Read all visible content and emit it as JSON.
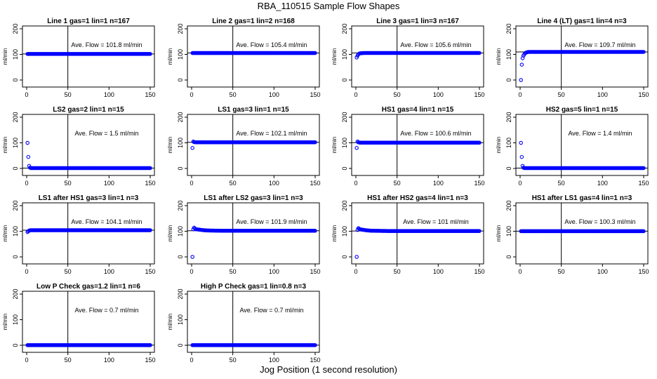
{
  "figure": {
    "title": "RBA_110515  Sample Flow Shapes",
    "xlabel": "Jog Position (1 second resolution)"
  },
  "chart_data": [
    {
      "type": "scatter",
      "title": "Line 1 gas=1 lin=1 n=167",
      "ylabel": "ml/min",
      "annotation": "Ave. Flow = 101.8  ml/min",
      "xlim": [
        0,
        150
      ],
      "ylim": [
        0,
        200
      ],
      "xticks": [
        0,
        50,
        100,
        150
      ],
      "yticks": [
        0,
        100,
        200
      ],
      "vline": 50,
      "hline": 101.8,
      "series": [
        {
          "color": "#0000ff",
          "x": [
            1,
            2,
            3,
            5,
            10,
            20,
            40,
            60,
            80,
            100,
            120,
            140,
            150
          ],
          "y": [
            101.8,
            101.8,
            101.8,
            101.8,
            101.8,
            101.8,
            101.8,
            101.8,
            101.8,
            101.8,
            101.8,
            101.8,
            101.8
          ]
        }
      ]
    },
    {
      "type": "scatter",
      "title": "Line 2 gas=1 lin=2 n=168",
      "ylabel": "ml/min",
      "annotation": "Ave. Flow = 105.4  ml/min",
      "xlim": [
        0,
        150
      ],
      "ylim": [
        0,
        200
      ],
      "xticks": [
        0,
        50,
        100,
        150
      ],
      "yticks": [
        0,
        100,
        200
      ],
      "vline": 50,
      "hline": 105.4,
      "series": [
        {
          "color": "#0000ff",
          "x": [
            1,
            2,
            3,
            5,
            10,
            20,
            40,
            60,
            80,
            100,
            120,
            140,
            150
          ],
          "y": [
            105.4,
            105.4,
            105.4,
            105.4,
            105.4,
            105.4,
            105.4,
            105.4,
            105.4,
            105.4,
            105.4,
            105.4,
            105.4
          ]
        }
      ]
    },
    {
      "type": "scatter",
      "title": "Line 3 gas=1 lin=3 n=167",
      "ylabel": "ml/min",
      "annotation": "Ave. Flow = 105.6  ml/min",
      "xlim": [
        0,
        150
      ],
      "ylim": [
        0,
        200
      ],
      "xticks": [
        0,
        50,
        100,
        150
      ],
      "yticks": [
        0,
        100,
        200
      ],
      "vline": 50,
      "hline": 105.6,
      "series": [
        {
          "color": "#0000ff",
          "x": [
            1,
            2,
            3,
            4,
            5,
            8,
            10,
            20,
            40,
            60,
            80,
            100,
            120,
            140,
            150
          ],
          "y": [
            88,
            95,
            100,
            103,
            104,
            105,
            105.6,
            105.6,
            105.6,
            105.6,
            105.6,
            105.6,
            105.6,
            105.6,
            105.6
          ]
        }
      ]
    },
    {
      "type": "scatter",
      "title": "Line 4 (LT) gas=1 lin=4 n=3",
      "ylabel": "ml/min",
      "annotation": "Ave. Flow = 109.7  ml/min",
      "xlim": [
        0,
        150
      ],
      "ylim": [
        0,
        200
      ],
      "xticks": [
        0,
        50,
        100,
        150
      ],
      "yticks": [
        0,
        100,
        200
      ],
      "vline": 50,
      "hline": 109.7,
      "series": [
        {
          "color": "#0000ff",
          "x": [
            1,
            2,
            3,
            4,
            5,
            6,
            8,
            10,
            20,
            40,
            60,
            80,
            100,
            120,
            140,
            150
          ],
          "y": [
            0,
            60,
            85,
            95,
            100,
            105,
            108,
            109.7,
            109.7,
            109.7,
            109.7,
            109.7,
            109.7,
            109.7,
            109.7,
            109.7
          ]
        }
      ]
    },
    {
      "type": "scatter",
      "title": "LS2 gas=2 lin=1 n=15",
      "ylabel": "ml/min",
      "annotation": "Ave. Flow =  1.5  ml/min",
      "xlim": [
        0,
        150
      ],
      "ylim": [
        0,
        200
      ],
      "xticks": [
        0,
        50,
        100,
        150
      ],
      "yticks": [
        0,
        100,
        200
      ],
      "vline": 50,
      "hline": 1.5,
      "series": [
        {
          "color": "#0000ff",
          "x": [
            1,
            2,
            3,
            4,
            5,
            10,
            20,
            40,
            60,
            80,
            100,
            120,
            140,
            150
          ],
          "y": [
            100,
            45,
            10,
            3,
            1.5,
            1.5,
            1.5,
            1.5,
            1.5,
            1.5,
            1.5,
            1.5,
            1.5,
            1.5
          ]
        }
      ]
    },
    {
      "type": "scatter",
      "title": "LS1 gas=3 lin=1 n=15",
      "ylabel": "ml/min",
      "annotation": "Ave. Flow = 102.1  ml/min",
      "xlim": [
        0,
        150
      ],
      "ylim": [
        0,
        200
      ],
      "xticks": [
        0,
        50,
        100,
        150
      ],
      "yticks": [
        0,
        100,
        200
      ],
      "vline": 50,
      "hline": 102.1,
      "series": [
        {
          "color": "#0000ff",
          "x": [
            1,
            2,
            3,
            5,
            10,
            20,
            40,
            60,
            80,
            100,
            120,
            140,
            150
          ],
          "y": [
            80,
            105,
            103,
            102.1,
            102.1,
            102.1,
            102.1,
            102.1,
            102.1,
            102.1,
            102.1,
            102.1,
            102.1
          ]
        }
      ]
    },
    {
      "type": "scatter",
      "title": "HS1 gas=4 lin=1 n=15",
      "ylabel": "ml/min",
      "annotation": "Ave. Flow = 100.6  ml/min",
      "xlim": [
        0,
        150
      ],
      "ylim": [
        0,
        200
      ],
      "xticks": [
        0,
        50,
        100,
        150
      ],
      "yticks": [
        0,
        100,
        200
      ],
      "vline": 50,
      "hline": 100.6,
      "series": [
        {
          "color": "#0000ff",
          "x": [
            1,
            2,
            3,
            5,
            10,
            20,
            40,
            60,
            80,
            100,
            120,
            140,
            150
          ],
          "y": [
            80,
            105,
            102,
            100.6,
            100.6,
            100.6,
            100.6,
            100.6,
            100.6,
            100.6,
            100.6,
            100.6,
            100.6
          ]
        }
      ]
    },
    {
      "type": "scatter",
      "title": "HS2 gas=5 lin=1 n=15",
      "ylabel": "ml/min",
      "annotation": "Ave. Flow =  1.4  ml/min",
      "xlim": [
        0,
        150
      ],
      "ylim": [
        0,
        200
      ],
      "xticks": [
        0,
        50,
        100,
        150
      ],
      "yticks": [
        0,
        100,
        200
      ],
      "vline": 50,
      "hline": 1.4,
      "series": [
        {
          "color": "#0000ff",
          "x": [
            1,
            2,
            3,
            4,
            5,
            10,
            20,
            40,
            60,
            80,
            100,
            120,
            140,
            150
          ],
          "y": [
            100,
            45,
            10,
            3,
            1.4,
            1.4,
            1.4,
            1.4,
            1.4,
            1.4,
            1.4,
            1.4,
            1.4,
            1.4
          ]
        }
      ]
    },
    {
      "type": "scatter",
      "title": "LS1 after HS1 gas=3 lin=1 n=3",
      "ylabel": "ml/min",
      "annotation": "Ave. Flow = 104.1  ml/min",
      "xlim": [
        0,
        150
      ],
      "ylim": [
        0,
        200
      ],
      "xticks": [
        0,
        50,
        100,
        150
      ],
      "yticks": [
        0,
        100,
        200
      ],
      "vline": 50,
      "hline": 104.1,
      "series": [
        {
          "color": "#0000ff",
          "x": [
            1,
            2,
            3,
            5,
            10,
            20,
            40,
            60,
            80,
            100,
            120,
            140,
            150
          ],
          "y": [
            97,
            100,
            103,
            104.1,
            104.1,
            104.1,
            104.1,
            104.1,
            104.1,
            104.1,
            104.1,
            104.1,
            104.1
          ]
        }
      ]
    },
    {
      "type": "scatter",
      "title": "LS1 after LS2 gas=3 lin=1 n=3",
      "ylabel": "ml/min",
      "annotation": "Ave. Flow = 101.9  ml/min",
      "xlim": [
        0,
        150
      ],
      "ylim": [
        0,
        200
      ],
      "xticks": [
        0,
        50,
        100,
        150
      ],
      "yticks": [
        0,
        100,
        200
      ],
      "vline": 50,
      "hline": 101.9,
      "series": [
        {
          "color": "#0000ff",
          "x": [
            1,
            2,
            3,
            4,
            5,
            8,
            10,
            15,
            20,
            40,
            60,
            80,
            100,
            120,
            140,
            150
          ],
          "y": [
            0,
            108,
            114,
            111,
            108,
            107,
            106,
            104,
            103,
            101.9,
            101.9,
            101.9,
            101.9,
            101.9,
            101.9,
            101.9
          ]
        }
      ]
    },
    {
      "type": "scatter",
      "title": "HS1 after HS2 gas=4 lin=1 n=3",
      "ylabel": "ml/min",
      "annotation": "Ave. Flow = 101  ml/min",
      "xlim": [
        0,
        150
      ],
      "ylim": [
        0,
        200
      ],
      "xticks": [
        0,
        50,
        100,
        150
      ],
      "yticks": [
        0,
        100,
        200
      ],
      "vline": 50,
      "hline": 101,
      "series": [
        {
          "color": "#0000ff",
          "x": [
            1,
            2,
            3,
            4,
            5,
            8,
            10,
            15,
            20,
            40,
            60,
            80,
            100,
            120,
            140,
            150
          ],
          "y": [
            0,
            105,
            112,
            110,
            108,
            106,
            105,
            103,
            102,
            101,
            101,
            101,
            101,
            101,
            101,
            101
          ]
        }
      ]
    },
    {
      "type": "scatter",
      "title": "HS1 after LS1 gas=4 lin=1 n=3",
      "ylabel": "ml/min",
      "annotation": "Ave. Flow = 100.3  ml/min",
      "xlim": [
        0,
        150
      ],
      "ylim": [
        0,
        200
      ],
      "xticks": [
        0,
        50,
        100,
        150
      ],
      "yticks": [
        0,
        100,
        200
      ],
      "vline": 50,
      "hline": 100.3,
      "series": [
        {
          "color": "#0000ff",
          "x": [
            1,
            2,
            3,
            5,
            10,
            20,
            40,
            60,
            80,
            100,
            120,
            140,
            150
          ],
          "y": [
            100.3,
            100.3,
            100.3,
            100.3,
            100.3,
            100.3,
            100.3,
            100.3,
            100.3,
            100.3,
            100.3,
            100.3,
            100.3
          ]
        }
      ]
    },
    {
      "type": "scatter",
      "title": "Low P Check gas=1.2 lin=1 n=6",
      "ylabel": "ml/min",
      "annotation": "Ave. Flow =  0.7  ml/min",
      "xlim": [
        0,
        150
      ],
      "ylim": [
        0,
        200
      ],
      "xticks": [
        0,
        50,
        100,
        150
      ],
      "yticks": [
        0,
        100,
        200
      ],
      "vline": 50,
      "hline": 0.7,
      "series": [
        {
          "color": "#0000ff",
          "x": [
            1,
            2,
            3,
            5,
            10,
            20,
            40,
            60,
            80,
            100,
            120,
            140,
            150
          ],
          "y": [
            0.7,
            0.7,
            0.7,
            0.7,
            0.7,
            0.7,
            0.7,
            0.7,
            0.7,
            0.7,
            0.7,
            0.7,
            0.7
          ]
        }
      ]
    },
    {
      "type": "scatter",
      "title": "High P Check gas=1 lin=0.8 n=3",
      "ylabel": "ml/min",
      "annotation": "Ave. Flow =  0.7  ml/min",
      "xlim": [
        0,
        150
      ],
      "ylim": [
        0,
        200
      ],
      "xticks": [
        0,
        50,
        100,
        150
      ],
      "yticks": [
        0,
        100,
        200
      ],
      "vline": 50,
      "hline": 0.7,
      "series": [
        {
          "color": "#0000ff",
          "x": [
            1,
            2,
            3,
            5,
            10,
            20,
            40,
            60,
            80,
            100,
            120,
            140,
            150
          ],
          "y": [
            0.7,
            0.7,
            0.7,
            0.7,
            0.7,
            0.7,
            0.7,
            0.7,
            0.7,
            0.7,
            0.7,
            0.7,
            0.7
          ]
        }
      ]
    }
  ]
}
